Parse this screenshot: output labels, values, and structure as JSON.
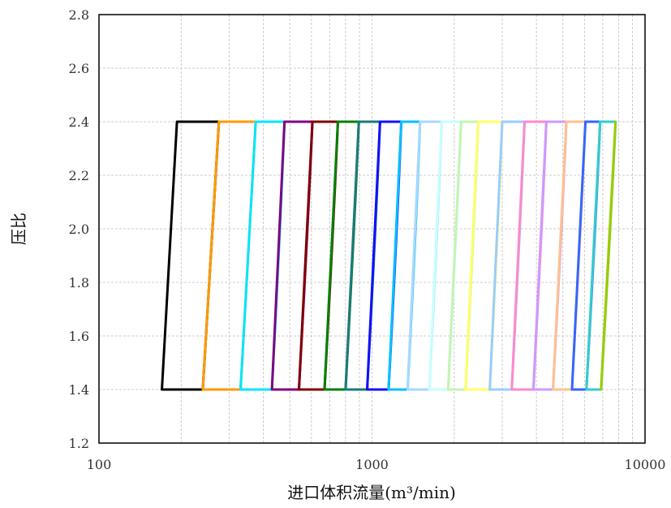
{
  "chart_data": {
    "type": "line",
    "title": "",
    "xlabel": "进口体积流量(m³/min)",
    "ylabel": "压比",
    "xscale": "log",
    "xlim": [
      100,
      10000
    ],
    "ylim": [
      1.2,
      2.8
    ],
    "x_ticks": [
      100,
      1000,
      10000
    ],
    "x_tick_labels": [
      "100",
      "1000",
      "10000"
    ],
    "y_ticks": [
      1.2,
      1.4,
      1.6,
      1.8,
      2.0,
      2.2,
      2.4,
      2.6,
      2.8
    ],
    "y_tick_labels": [
      "1.2",
      "1.4",
      "1.6",
      "1.8",
      "2.0",
      "2.2",
      "2.4",
      "2.6",
      "2.8"
    ],
    "grid": true,
    "legend": "none",
    "series": [
      {
        "color": "#000000",
        "min_line": [
          [
            170,
            1.4
          ],
          [
            193,
            2.4
          ]
        ],
        "max_line": [
          [
            240,
            1.4
          ],
          [
            275,
            2.4
          ]
        ]
      },
      {
        "color": "#FF9900",
        "min_line": [
          [
            240,
            1.4
          ],
          [
            275,
            2.4
          ]
        ],
        "max_line": [
          [
            330,
            1.4
          ],
          [
            375,
            2.4
          ]
        ]
      },
      {
        "color": "#00E5FF",
        "min_line": [
          [
            330,
            1.4
          ],
          [
            375,
            2.4
          ]
        ],
        "max_line": [
          [
            430,
            1.4
          ],
          [
            478,
            2.4
          ]
        ]
      },
      {
        "color": "#800080",
        "min_line": [
          [
            430,
            1.4
          ],
          [
            478,
            2.4
          ]
        ],
        "max_line": [
          [
            540,
            1.4
          ],
          [
            605,
            2.4
          ]
        ]
      },
      {
        "color": "#800000",
        "min_line": [
          [
            540,
            1.4
          ],
          [
            605,
            2.4
          ]
        ],
        "max_line": [
          [
            670,
            1.4
          ],
          [
            750,
            2.4
          ]
        ]
      },
      {
        "color": "#008000",
        "min_line": [
          [
            670,
            1.4
          ],
          [
            750,
            2.4
          ]
        ],
        "max_line": [
          [
            800,
            1.4
          ],
          [
            895,
            2.4
          ]
        ]
      },
      {
        "color": "#1A7A7A",
        "min_line": [
          [
            800,
            1.4
          ],
          [
            895,
            2.4
          ]
        ],
        "max_line": [
          [
            960,
            1.4
          ],
          [
            1070,
            2.4
          ]
        ]
      },
      {
        "color": "#1010FF",
        "min_line": [
          [
            960,
            1.4
          ],
          [
            1070,
            2.4
          ]
        ],
        "max_line": [
          [
            1150,
            1.4
          ],
          [
            1280,
            2.4
          ]
        ]
      },
      {
        "color": "#00BFFF",
        "min_line": [
          [
            1150,
            1.4
          ],
          [
            1280,
            2.4
          ]
        ],
        "max_line": [
          [
            1350,
            1.4
          ],
          [
            1500,
            2.4
          ]
        ]
      },
      {
        "color": "#A8D8FF",
        "min_line": [
          [
            1350,
            1.4
          ],
          [
            1500,
            2.4
          ]
        ],
        "max_line": [
          [
            1620,
            1.4
          ],
          [
            1800,
            2.4
          ]
        ]
      },
      {
        "color": "#C6FFFF",
        "min_line": [
          [
            1620,
            1.4
          ],
          [
            1800,
            2.4
          ]
        ],
        "max_line": [
          [
            1900,
            1.4
          ],
          [
            2120,
            2.4
          ]
        ]
      },
      {
        "color": "#C2F5B0",
        "min_line": [
          [
            1900,
            1.4
          ],
          [
            2120,
            2.4
          ]
        ],
        "max_line": [
          [
            2200,
            1.4
          ],
          [
            2450,
            2.4
          ]
        ]
      },
      {
        "color": "#FFFF66",
        "min_line": [
          [
            2200,
            1.4
          ],
          [
            2450,
            2.4
          ]
        ],
        "max_line": [
          [
            2700,
            1.4
          ],
          [
            3000,
            2.4
          ]
        ]
      },
      {
        "color": "#99CCFF",
        "min_line": [
          [
            2700,
            1.4
          ],
          [
            3000,
            2.4
          ]
        ],
        "max_line": [
          [
            3250,
            1.4
          ],
          [
            3620,
            2.4
          ]
        ]
      },
      {
        "color": "#FF88CC",
        "min_line": [
          [
            3250,
            1.4
          ],
          [
            3620,
            2.4
          ]
        ],
        "max_line": [
          [
            3900,
            1.4
          ],
          [
            4350,
            2.4
          ]
        ]
      },
      {
        "color": "#CC99FF",
        "min_line": [
          [
            3900,
            1.4
          ],
          [
            4350,
            2.4
          ]
        ],
        "max_line": [
          [
            4600,
            1.4
          ],
          [
            5150,
            2.4
          ]
        ]
      },
      {
        "color": "#FFC090",
        "min_line": [
          [
            4600,
            1.4
          ],
          [
            5150,
            2.4
          ]
        ],
        "max_line": [
          [
            5400,
            1.4
          ],
          [
            6050,
            2.4
          ]
        ]
      },
      {
        "color": "#3366FF",
        "min_line": [
          [
            5400,
            1.4
          ],
          [
            6050,
            2.4
          ]
        ],
        "max_line": [
          [
            6100,
            1.4
          ],
          [
            6850,
            2.4
          ]
        ]
      },
      {
        "color": "#33CCCC",
        "min_line": [
          [
            6100,
            1.4
          ],
          [
            6850,
            2.4
          ]
        ],
        "max_line": [
          [
            6900,
            1.4
          ],
          [
            7800,
            2.4
          ]
        ]
      },
      {
        "color": "#99CC00",
        "min_line": [
          [
            6900,
            1.4
          ],
          [
            7800,
            2.4
          ]
        ],
        "max_line": [
          [
            6900,
            1.4
          ],
          [
            7800,
            2.4
          ]
        ]
      }
    ]
  }
}
